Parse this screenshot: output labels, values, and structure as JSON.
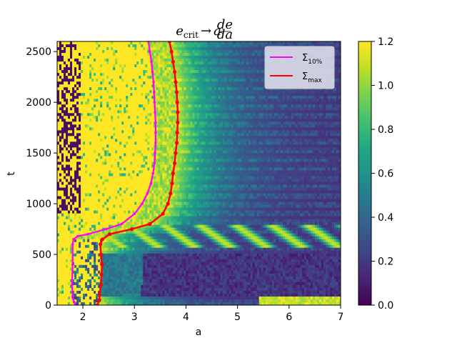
{
  "chart_data": {
    "type": "heatmap",
    "title": {
      "main": "e",
      "sub": "crit",
      "arrow": "→",
      "a": "a",
      "frac_num": "de",
      "frac_den": "da"
    },
    "xlabel": "a",
    "ylabel": "t",
    "xlim": [
      1.5,
      7
    ],
    "ylim": [
      0,
      2600
    ],
    "x_ticks": [
      "2",
      "3",
      "4",
      "5",
      "6",
      "7"
    ],
    "x_tick_values": [
      2,
      3,
      4,
      5,
      6,
      7
    ],
    "y_ticks": [
      "0",
      "500",
      "1000",
      "1500",
      "2000",
      "2500"
    ],
    "y_tick_values": [
      0,
      500,
      1000,
      1500,
      2000,
      2500
    ],
    "colorbar": {
      "colormap": "viridis",
      "range": [
        0,
        1.2
      ],
      "ticks": [
        "0.0",
        "0.2",
        "0.4",
        "0.6",
        "0.8",
        "1.0",
        "1.2"
      ],
      "tick_values": [
        0,
        0.2,
        0.4,
        0.6,
        0.8,
        1.0,
        1.2
      ]
    },
    "legend_placement": "top-right",
    "series": [
      {
        "name": "Σ",
        "name_sub": "10%",
        "color": "#ff00ff",
        "t": [
          0,
          30,
          80,
          200,
          400,
          600,
          650,
          680,
          700,
          750,
          800,
          900,
          1000,
          1100,
          1200,
          1300,
          1400,
          1500,
          1600,
          1700,
          1800,
          1900,
          2000,
          2100,
          2200,
          2300,
          2400,
          2500,
          2600
        ],
        "a": [
          1.85,
          1.83,
          1.8,
          1.79,
          1.8,
          1.8,
          1.82,
          1.9,
          2.1,
          2.45,
          2.75,
          3.0,
          3.15,
          3.25,
          3.32,
          3.36,
          3.39,
          3.4,
          3.41,
          3.41,
          3.41,
          3.4,
          3.39,
          3.38,
          3.37,
          3.35,
          3.33,
          3.3,
          3.27
        ]
      },
      {
        "name": "Σ",
        "name_sub": "max",
        "color": "#ff0000",
        "t": [
          0,
          50,
          100,
          200,
          300,
          400,
          500,
          600,
          650,
          700,
          750,
          800,
          900,
          1000,
          1100,
          1200,
          1300,
          1400,
          1500,
          1600,
          1700,
          1800,
          1900,
          2000,
          2100,
          2200,
          2300,
          2400,
          2500,
          2600
        ],
        "a": [
          2.28,
          2.32,
          2.32,
          2.35,
          2.36,
          2.37,
          2.35,
          2.34,
          2.38,
          2.52,
          2.95,
          3.3,
          3.55,
          3.65,
          3.7,
          3.73,
          3.75,
          3.78,
          3.8,
          3.82,
          3.83,
          3.84,
          3.84,
          3.83,
          3.82,
          3.8,
          3.78,
          3.75,
          3.72,
          3.68
        ]
      }
    ]
  }
}
